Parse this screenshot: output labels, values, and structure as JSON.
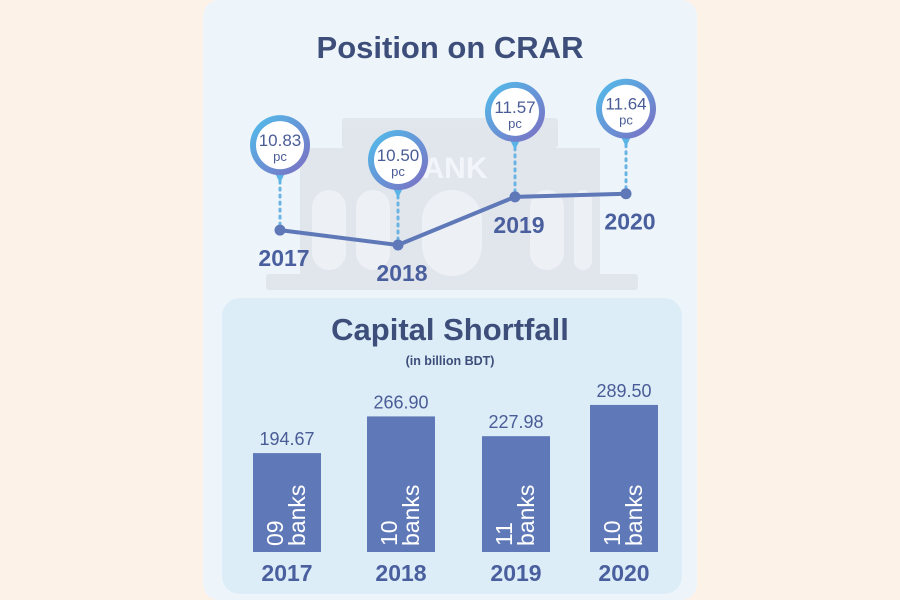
{
  "colors": {
    "page_bg": "#fdf2e7",
    "card_bg": "#edf4fa",
    "panel_bg": "#dcedf8",
    "title": "#3d4e7a",
    "accent": "#5f78b8",
    "bubble_ring": "#5ab4e6"
  },
  "chart_data": [
    {
      "type": "line",
      "title": "Position on CRAR",
      "categories": [
        "2017",
        "2018",
        "2019",
        "2020"
      ],
      "values": [
        10.83,
        10.5,
        11.57,
        11.64
      ],
      "data_labels": [
        "10.83",
        "10.50",
        "11.57",
        "11.64"
      ],
      "unit_label": "pc",
      "background_decoration": "bank building",
      "background_text": "ANK"
    },
    {
      "type": "bar",
      "title": "Capital Shortfall",
      "subtitle": "(in billion BDT)",
      "categories": [
        "2017",
        "2018",
        "2019",
        "2020"
      ],
      "values": [
        194.67,
        266.9,
        227.98,
        289.5
      ],
      "data_labels": [
        "194.67",
        "266.90",
        "227.98",
        "289.50"
      ],
      "bar_labels": [
        [
          "09",
          "banks"
        ],
        [
          "10",
          "banks"
        ],
        [
          "11",
          "banks"
        ],
        [
          "10",
          "banks"
        ]
      ]
    }
  ]
}
